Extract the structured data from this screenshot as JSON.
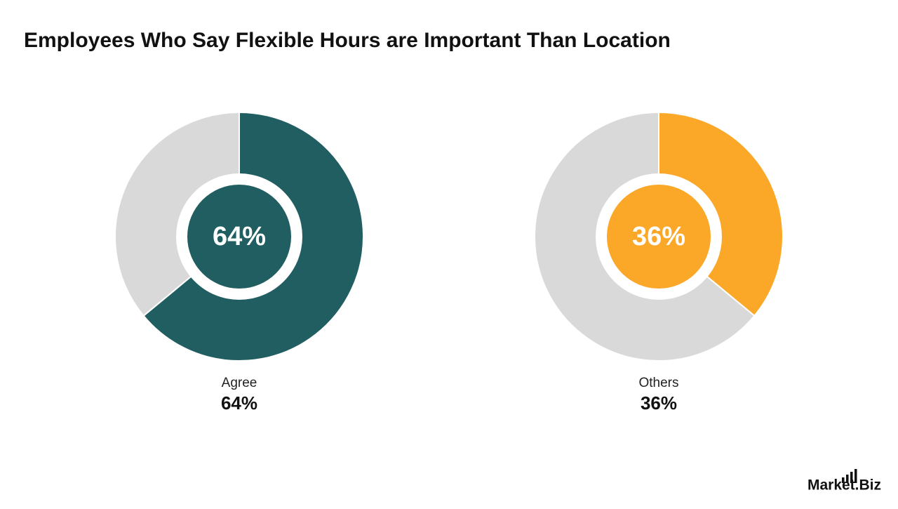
{
  "title": "Employees Who Say Flexible Hours are Important Than Location",
  "chart_data": [
    {
      "type": "pie",
      "categories": [
        "Agree",
        null
      ],
      "values": [
        64,
        36
      ],
      "value_labels": [
        "64%",
        null
      ],
      "colors": [
        "#215e62",
        "#d9d9d9"
      ]
    },
    {
      "type": "pie",
      "categories": [
        "Others",
        null
      ],
      "values": [
        36,
        64
      ],
      "value_labels": [
        "36%",
        null
      ],
      "colors": [
        "#fba728",
        "#d9d9d9"
      ]
    }
  ],
  "brand": "Market.Biz"
}
